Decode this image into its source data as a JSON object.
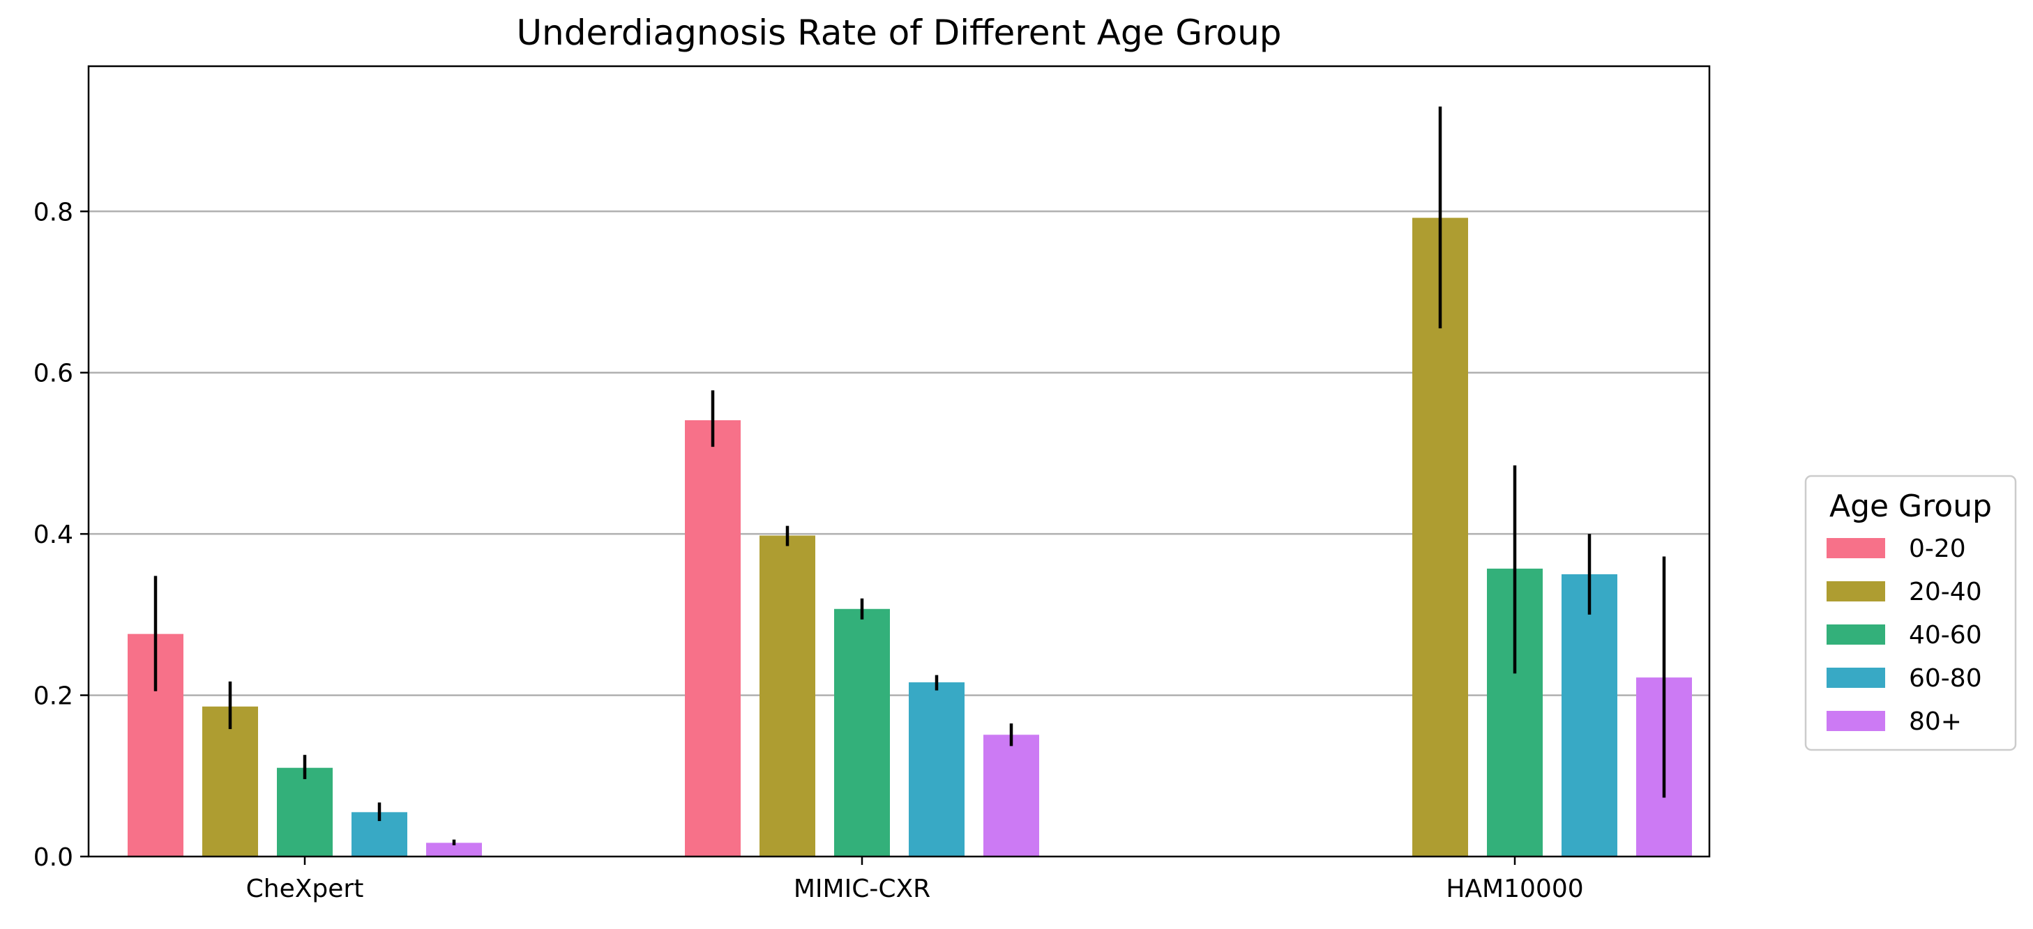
{
  "chart_data": {
    "type": "bar",
    "title": "Underdiagnosis Rate of Different Age Group",
    "xlabel": "",
    "ylabel": "",
    "ylim": [
      0,
      0.98
    ],
    "yticks": [
      0.0,
      0.2,
      0.4,
      0.6,
      0.8
    ],
    "ytick_labels": [
      "0.0",
      "0.2",
      "0.4",
      "0.6",
      "0.8"
    ],
    "grid": "horizontal",
    "legend": {
      "title": "Age Group",
      "placement": "right"
    },
    "categories": [
      "CheXpert",
      "MIMIC-CXR",
      "HAM10000"
    ],
    "series": [
      {
        "name": "0-20",
        "color": "#f77189",
        "values": [
          0.276,
          0.541,
          null
        ],
        "err_low": [
          0.205,
          0.508,
          null
        ],
        "err_high": [
          0.348,
          0.578,
          null
        ]
      },
      {
        "name": "20-40",
        "color": "#ae9d31",
        "values": [
          0.186,
          0.398,
          0.792
        ],
        "err_low": [
          0.158,
          0.385,
          0.655
        ],
        "err_high": [
          0.217,
          0.41,
          0.93
        ]
      },
      {
        "name": "40-60",
        "color": "#33b07a",
        "values": [
          0.11,
          0.307,
          0.357
        ],
        "err_low": [
          0.096,
          0.294,
          0.227
        ],
        "err_high": [
          0.126,
          0.32,
          0.485
        ]
      },
      {
        "name": "60-80",
        "color": "#38a9c5",
        "values": [
          0.055,
          0.216,
          0.35
        ],
        "err_low": [
          0.044,
          0.206,
          0.3
        ],
        "err_high": [
          0.067,
          0.225,
          0.4
        ]
      },
      {
        "name": "80+",
        "color": "#cc7af4",
        "values": [
          0.017,
          0.151,
          0.222
        ],
        "err_low": [
          0.014,
          0.137,
          0.073
        ],
        "err_high": [
          0.021,
          0.165,
          0.372
        ]
      }
    ]
  }
}
